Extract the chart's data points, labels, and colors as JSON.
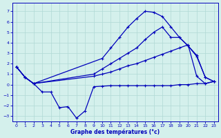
{
  "xlabel": "Graphe des températures (°c)",
  "xlim": [
    -0.5,
    23.5
  ],
  "ylim": [
    -3.5,
    7.8
  ],
  "xticks": [
    0,
    1,
    2,
    3,
    4,
    5,
    6,
    7,
    8,
    9,
    10,
    11,
    12,
    13,
    14,
    15,
    16,
    17,
    18,
    19,
    20,
    21,
    22,
    23
  ],
  "yticks": [
    -3,
    -2,
    -1,
    0,
    1,
    2,
    3,
    4,
    5,
    6,
    7
  ],
  "bg_color": "#d4f0ec",
  "grid_color": "#b0d8d4",
  "line_color": "#0000bb",
  "line1_x": [
    0,
    1,
    2,
    3,
    4,
    5,
    6,
    7,
    8,
    9,
    10,
    11,
    12,
    13,
    14,
    15,
    16,
    17,
    18,
    19,
    20,
    21,
    22,
    23
  ],
  "line1_y": [
    1.7,
    0.7,
    0.1,
    -0.7,
    -0.7,
    -2.2,
    -2.1,
    -3.2,
    -2.5,
    -0.2,
    -0.15,
    -0.1,
    -0.1,
    -0.1,
    -0.1,
    -0.1,
    -0.1,
    -0.1,
    -0.1,
    0.0,
    0.0,
    0.1,
    0.1,
    0.3
  ],
  "line2_x": [
    0,
    1,
    2,
    9,
    10,
    11,
    12,
    13,
    14,
    15,
    16,
    17,
    18,
    19,
    20,
    21,
    22,
    23
  ],
  "line2_y": [
    1.7,
    0.7,
    0.1,
    0.8,
    1.0,
    1.2,
    1.5,
    1.8,
    2.0,
    2.3,
    2.6,
    2.9,
    3.2,
    3.5,
    3.8,
    0.8,
    0.1,
    0.3
  ],
  "line3_x": [
    0,
    1,
    2,
    9,
    10,
    11,
    12,
    13,
    14,
    15,
    16,
    17,
    18,
    19,
    20,
    21,
    22,
    23
  ],
  "line3_y": [
    1.7,
    0.7,
    0.1,
    1.0,
    1.5,
    2.0,
    2.5,
    3.0,
    3.5,
    4.3,
    5.0,
    5.5,
    4.5,
    4.5,
    3.7,
    2.7,
    0.7,
    0.3
  ],
  "line4_x": [
    0,
    1,
    2,
    10,
    11,
    12,
    13,
    14,
    15,
    16,
    17,
    18,
    19,
    20,
    21,
    22,
    23
  ],
  "line4_y": [
    1.7,
    0.7,
    0.1,
    2.5,
    3.5,
    4.5,
    5.5,
    6.3,
    7.0,
    6.9,
    6.5,
    5.5,
    4.5,
    3.7,
    2.8,
    0.7,
    0.3
  ]
}
